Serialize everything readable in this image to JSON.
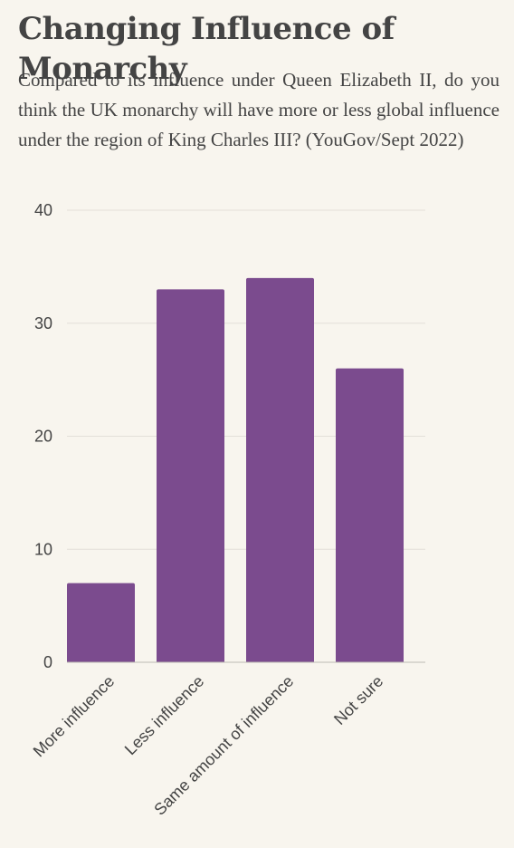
{
  "header": {
    "title": "Changing Influence of Monarchy",
    "subtitle": "Compared to its influence under Queen Elizabeth II, do you think the UK monarchy will have more or less global influence under the region of King Charles III? (YouGov/Sept 2022)"
  },
  "chart_data": {
    "type": "bar",
    "title": "Changing Influence of Monarchy",
    "subtitle": "Compared to its influence under Queen Elizabeth II, do you think the UK monarchy will have more or less global influence under the region of King Charles III? (YouGov/Sept 2022)",
    "categories": [
      "More influence",
      "Less influence",
      "Same amount of influence",
      "Not sure"
    ],
    "values": [
      7,
      33,
      34,
      26
    ],
    "xlabel": "",
    "ylabel": "",
    "ylim": [
      0,
      40
    ],
    "yticks": [
      0,
      10,
      20,
      30,
      40
    ],
    "grid": true,
    "legend": "none",
    "bar_color": "#7b4b8e",
    "grid_color": "#e3dfd8",
    "axis_color": "#bdbab4",
    "text_color": "#444444",
    "background": "#f8f5ee"
  }
}
